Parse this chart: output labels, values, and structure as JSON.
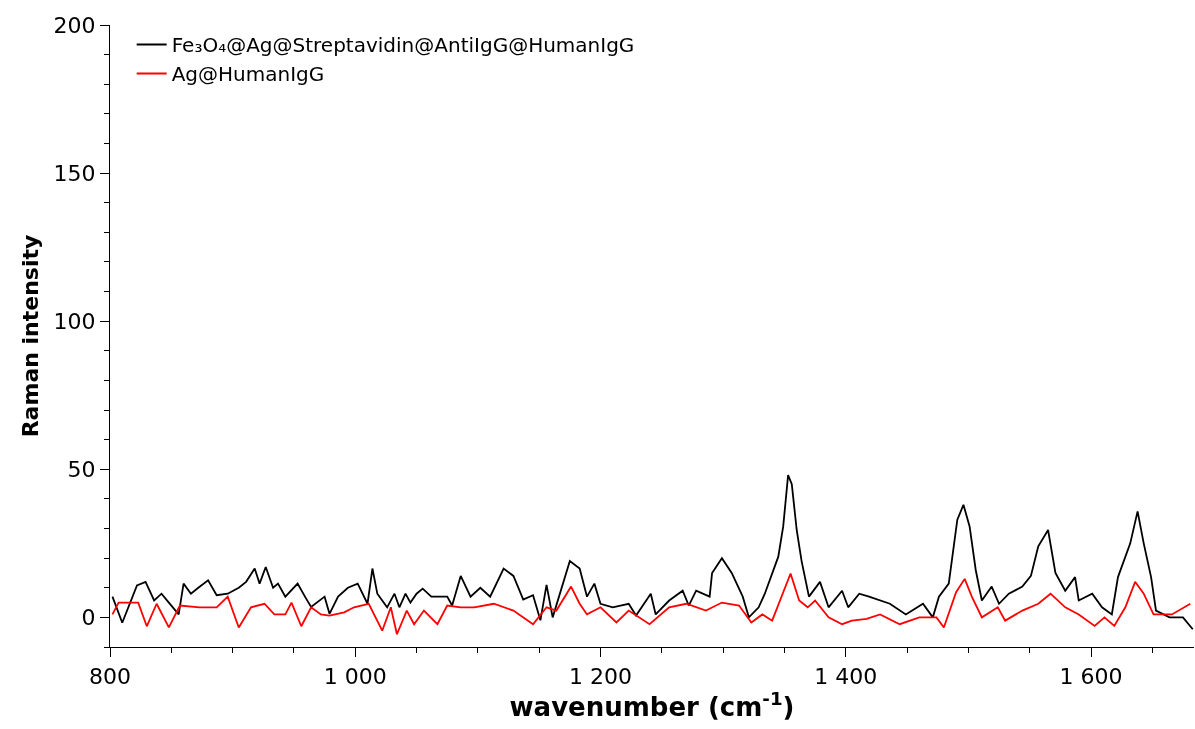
{
  "chart_data": {
    "type": "line",
    "xlabel": "wavenumber (cm$^{-1}$)",
    "ylabel": "Raman intensity",
    "xlim": [
      800,
      1684
    ],
    "ylim": [
      -10,
      200
    ],
    "xticks": [
      800,
      {
        "value": 850,
        "label": null
      },
      {
        "value": 900,
        "label": null
      },
      {
        "value": 950,
        "label": null
      },
      {
        "value": 1000,
        "label": "1 000"
      },
      {
        "value": 1050,
        "label": null
      },
      {
        "value": 1100,
        "label": null
      },
      {
        "value": 1150,
        "label": null
      },
      {
        "value": 1200,
        "label": "1 200"
      },
      {
        "value": 1250,
        "label": null
      },
      {
        "value": 1300,
        "label": null
      },
      {
        "value": 1350,
        "label": null
      },
      {
        "value": 1400,
        "label": "1 400"
      },
      {
        "value": 1450,
        "label": null
      },
      {
        "value": 1500,
        "label": null
      },
      {
        "value": 1550,
        "label": null
      },
      {
        "value": 1600,
        "label": "1 600"
      },
      {
        "value": 1650,
        "label": null
      }
    ],
    "yticks": [
      {
        "value": -10,
        "label": null
      },
      0,
      {
        "value": 10,
        "label": null
      },
      {
        "value": 20,
        "label": null
      },
      {
        "value": 30,
        "label": null
      },
      {
        "value": 40,
        "label": null
      },
      50,
      {
        "value": 60,
        "label": null
      },
      {
        "value": 70,
        "label": null
      },
      {
        "value": 80,
        "label": null
      },
      {
        "value": 90,
        "label": null
      },
      100,
      {
        "value": 110,
        "label": null
      },
      {
        "value": 120,
        "label": null
      },
      {
        "value": 130,
        "label": null
      },
      {
        "value": 140,
        "label": null
      },
      150,
      {
        "value": 160,
        "label": null
      },
      {
        "value": 170,
        "label": null
      },
      {
        "value": 180,
        "label": null
      },
      {
        "value": 190,
        "label": null
      },
      200
    ],
    "legend": "top left",
    "marker": "none",
    "line_style": "solid",
    "series": [
      {
        "name": "Fe₃O₄@Ag@Streptavidin@AntiIgG@HumanIgG",
        "color": "#000000",
        "x": [
          802,
          810,
          822,
          829,
          836,
          842,
          848,
          856,
          860,
          866,
          872,
          880,
          887,
          896,
          905,
          911,
          918,
          922,
          927,
          933,
          937,
          943,
          953,
          959,
          964,
          975,
          979,
          986,
          994,
          1002,
          1010,
          1014,
          1018,
          1026,
          1032,
          1036,
          1041,
          1045,
          1050,
          1055,
          1062,
          1075,
          1079,
          1086,
          1094,
          1102,
          1110,
          1121,
          1129,
          1137,
          1145,
          1151,
          1156,
          1161,
          1175,
          1183,
          1189,
          1195,
          1200,
          1210,
          1223,
          1229,
          1241,
          1245,
          1256,
          1267,
          1272,
          1278,
          1289,
          1291,
          1299,
          1307,
          1316,
          1321,
          1329,
          1334,
          1345,
          1349,
          1353,
          1356,
          1360,
          1364,
          1370,
          1379,
          1386,
          1397,
          1402,
          1411,
          1419,
          1436,
          1449,
          1463,
          1471,
          1476,
          1484,
          1491,
          1496,
          1501,
          1506,
          1511,
          1519,
          1525,
          1533,
          1544,
          1551,
          1557,
          1565,
          1571,
          1579,
          1587,
          1590,
          1601,
          1609,
          1617,
          1622,
          1632,
          1638,
          1643,
          1649,
          1653,
          1664,
          1675,
          1683
        ],
        "values": [
          7,
          -1.8,
          10.8,
          12,
          5.7,
          8,
          5,
          1,
          11.4,
          8,
          10,
          12.5,
          7.5,
          8,
          10,
          12,
          16.5,
          11.4,
          17,
          10,
          11.4,
          7,
          11.4,
          7,
          3.5,
          7,
          1.2,
          7,
          10,
          11.4,
          4.6,
          16.5,
          8,
          3.4,
          8,
          3.4,
          8,
          5,
          8,
          9.7,
          7,
          7,
          4,
          14,
          7,
          10,
          7,
          16.5,
          14,
          6,
          7.5,
          -1,
          11,
          0,
          19,
          16.5,
          7,
          11.4,
          4.6,
          3.4,
          4.6,
          0.6,
          8,
          1,
          5.7,
          9,
          4,
          9,
          7,
          15,
          20,
          15,
          7,
          0,
          3.4,
          8,
          20.5,
          30.7,
          48,
          45,
          29.5,
          19,
          7,
          12,
          3.4,
          9,
          3.4,
          8,
          7,
          4.6,
          1,
          4.6,
          0,
          7,
          11.4,
          33,
          38,
          30.7,
          16,
          5.7,
          10.4,
          4.6,
          8,
          10.4,
          14,
          24,
          29.5,
          15,
          9,
          13.6,
          5.7,
          8,
          3.4,
          1,
          13.6,
          25,
          35.8,
          25,
          13.6,
          2.3,
          0,
          0,
          -4
        ]
      },
      {
        "name": "Ag@HumanIgG",
        "color": "#ff0000",
        "x": [
          802,
          807,
          823,
          830,
          838,
          848,
          857,
          873,
          887,
          896,
          905,
          915,
          926,
          934,
          943,
          948,
          956,
          964,
          972,
          979,
          991,
          999,
          1011,
          1022,
          1029,
          1034,
          1042,
          1048,
          1056,
          1067,
          1075,
          1086,
          1097,
          1113,
          1129,
          1145,
          1156,
          1164,
          1176,
          1183,
          1189,
          1200,
          1213,
          1223,
          1240,
          1256,
          1270,
          1286,
          1299,
          1313,
          1323,
          1332,
          1340,
          1355,
          1362,
          1369,
          1375,
          1386,
          1397,
          1405,
          1417,
          1428,
          1444,
          1460,
          1474,
          1480,
          1490,
          1497,
          1503,
          1511,
          1524,
          1530,
          1544,
          1557,
          1567,
          1579,
          1590,
          1603,
          1611,
          1619,
          1628,
          1636,
          1643,
          1651,
          1666,
          1681
        ],
        "values": [
          1,
          5,
          5,
          -3,
          4.6,
          -3.4,
          4,
          3.4,
          3.4,
          7,
          -3.4,
          3.4,
          4.6,
          1,
          1,
          5,
          -3,
          3.4,
          1,
          0.6,
          1.7,
          3.4,
          4.6,
          -4.5,
          3.4,
          -5.7,
          2.3,
          -2.3,
          2.3,
          -2.3,
          4,
          3.4,
          3.4,
          4.6,
          2.3,
          -2.3,
          3.4,
          2.3,
          10.4,
          4.6,
          1,
          3.4,
          -1.7,
          2.3,
          -2.3,
          3.4,
          4.6,
          2.3,
          5,
          4,
          -1.7,
          1,
          -1.1,
          14.8,
          5.7,
          3.4,
          5.7,
          0,
          -2.3,
          -1.1,
          -0.5,
          1,
          -2.3,
          0,
          0,
          -3.4,
          8.5,
          13,
          6.8,
          0,
          3.4,
          -1.1,
          2.3,
          4.6,
          8,
          3.4,
          1,
          -2.9,
          0,
          -2.9,
          3.4,
          12,
          8,
          1,
          1,
          4.6
        ]
      }
    ]
  }
}
